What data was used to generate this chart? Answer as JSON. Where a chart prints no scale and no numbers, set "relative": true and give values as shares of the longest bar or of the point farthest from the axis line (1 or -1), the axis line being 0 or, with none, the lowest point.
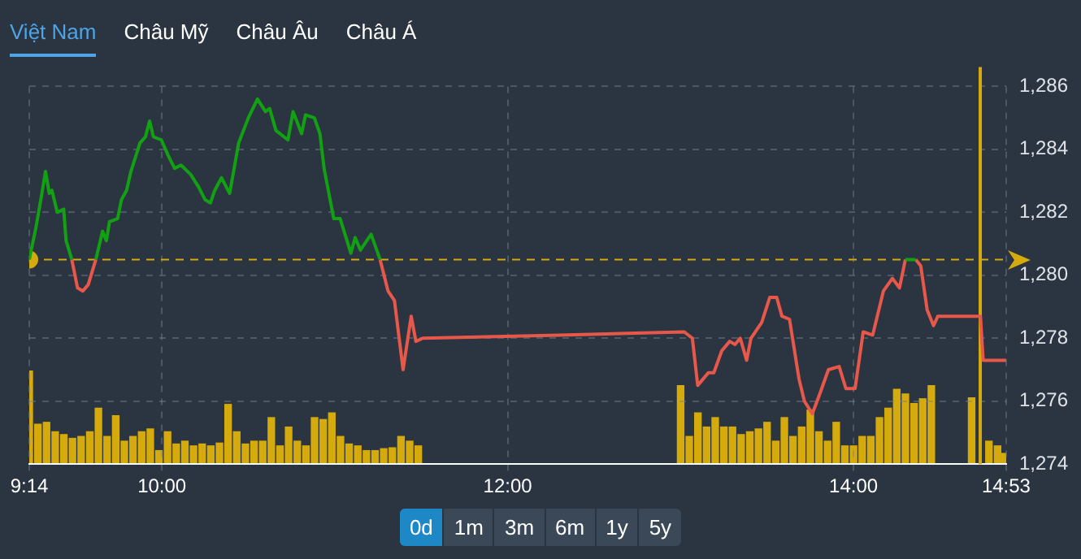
{
  "chart_data": [
    {
      "type": "line",
      "annotations": [
        "Việt Nam",
        "Châu Mỹ",
        "Châu Âu",
        "Châu Á"
      ],
      "xlim": [
        9.233,
        14.883
      ],
      "xticks": [
        {
          "value": 9.233,
          "label": "9:14"
        },
        {
          "value": 10,
          "label": "10:00"
        },
        {
          "value": 12,
          "label": "12:00"
        },
        {
          "value": 14,
          "label": "14:00"
        },
        {
          "value": 14.883,
          "label": "14:53"
        }
      ],
      "ylim": [
        1274,
        1286
      ],
      "yticks": [
        {
          "value": 1274,
          "label": "1,274"
        },
        {
          "value": 1276,
          "label": "1,276"
        },
        {
          "value": 1278,
          "label": "1,278"
        },
        {
          "value": 1280,
          "label": "1,280"
        },
        {
          "value": 1282,
          "label": "1,282"
        },
        {
          "value": 1284,
          "label": "1,284"
        },
        {
          "value": 1286,
          "label": "1,286"
        }
      ],
      "grid": true,
      "legend": false,
      "ref_lines": [
        {
          "axis": "y",
          "value": 1280.5,
          "color": "#d4aa0c",
          "line_style": "dashed"
        },
        {
          "axis": "x",
          "value": 14.733,
          "color": "#d4aa0c",
          "line_style": "solid"
        }
      ],
      "series": [
        {
          "color": "#12a112",
          "x": [
            9.233,
            9.271,
            9.303,
            9.327,
            9.349,
            9.364,
            9.395,
            9.432,
            9.446,
            9.479,
            9.55,
            9.618,
            9.657,
            9.679,
            9.697,
            9.744,
            9.766,
            9.796,
            9.821,
            9.873,
            9.905,
            9.929,
            9.951,
            9.997,
            10.037,
            10.074,
            10.111,
            10.167,
            10.213,
            10.25,
            10.281,
            10.306,
            10.345,
            10.392,
            10.444,
            10.5,
            10.553,
            10.599,
            10.623,
            10.66,
            10.729,
            10.759,
            10.808,
            10.831,
            10.882,
            10.914,
            10.938,
            10.994,
            11.031,
            11.093,
            11.118,
            11.148,
            11.21,
            11.262,
            11.3,
            14.3,
            14.36
          ],
          "values": [
            1280.5,
            1281.5,
            1282.5,
            1283.3,
            1282.6,
            1282.7,
            1282.0,
            1282.1,
            1281.1,
            1280.5,
            null,
            1280.5,
            1281.4,
            1281.1,
            1281.7,
            1281.8,
            1282.4,
            1282.7,
            1283.3,
            1284.2,
            1284.4,
            1284.9,
            1284.4,
            1284.3,
            1283.8,
            1283.4,
            1283.5,
            1283.2,
            1282.8,
            1282.4,
            1282.3,
            1282.7,
            1283.1,
            1282.6,
            1284.2,
            1285.0,
            1285.6,
            1285.2,
            1285.3,
            1284.6,
            1284.3,
            1285.2,
            1284.5,
            1285.1,
            1285.0,
            1284.5,
            1283.4,
            1281.8,
            1281.8,
            1280.7,
            1281.2,
            1280.8,
            1281.3,
            1280.5,
            null,
            1280.5,
            1280.5
          ]
        },
        {
          "color": "#e8584a",
          "x": [
            9.479,
            9.512,
            9.543,
            9.574,
            9.618,
            9.7,
            11.262,
            11.308,
            11.345,
            11.395,
            11.442,
            11.469,
            11.509,
            12.3,
            13.021,
            13.068,
            13.099,
            13.16,
            13.192,
            13.238,
            13.284,
            13.315,
            13.345,
            13.382,
            13.407,
            13.469,
            13.516,
            13.556,
            13.586,
            13.63,
            13.685,
            13.716,
            13.762,
            13.803,
            13.855,
            13.917,
            13.956,
            14.009,
            14.056,
            14.111,
            14.173,
            14.225,
            14.266,
            14.3,
            14.33,
            14.36,
            14.389,
            14.426,
            14.463,
            14.488,
            14.734,
            14.75,
            14.883
          ],
          "values": [
            1280.5,
            1279.6,
            1279.5,
            1279.7,
            1280.5,
            null,
            1280.5,
            1279.5,
            1279.2,
            1277.0,
            1278.7,
            1277.9,
            1278.0,
            1278.1,
            1278.2,
            1278.0,
            1276.5,
            1276.9,
            1276.9,
            1277.6,
            1277.9,
            1277.8,
            1278.0,
            1277.3,
            1278.0,
            1278.5,
            1279.3,
            1279.3,
            1278.7,
            1278.6,
            1276.7,
            1276.0,
            1275.6,
            1276.2,
            1277.0,
            1277.1,
            1276.4,
            1276.4,
            1278.2,
            1278.1,
            1279.5,
            1279.9,
            1279.6,
            1280.5,
            null,
            1280.5,
            1280.3,
            1278.9,
            1278.4,
            1278.7,
            1278.7,
            1277.3,
            1277.3
          ]
        },
        {
          "type": "scatter",
          "color": "#d4aa0c",
          "x": [
            9.233
          ],
          "values": [
            1280.5
          ]
        }
      ]
    },
    {
      "type": "bar",
      "relative": true,
      "color": "#d4aa0c",
      "annotations": [
        "0d",
        "1m",
        "3m",
        "6m",
        "1y",
        "5y"
      ],
      "xlim": [
        9.233,
        14.883
      ],
      "x": [
        9.233,
        9.283,
        9.333,
        9.383,
        9.433,
        9.483,
        9.533,
        9.583,
        9.633,
        9.683,
        9.733,
        9.783,
        9.833,
        9.883,
        9.933,
        9.983,
        10.033,
        10.083,
        10.133,
        10.183,
        10.233,
        10.283,
        10.333,
        10.383,
        10.433,
        10.483,
        10.533,
        10.583,
        10.633,
        10.683,
        10.733,
        10.783,
        10.833,
        10.883,
        10.933,
        10.983,
        11.033,
        11.083,
        11.133,
        11.183,
        11.233,
        11.283,
        11.333,
        11.383,
        11.433,
        11.483,
        13.0,
        13.05,
        13.1,
        13.15,
        13.2,
        13.25,
        13.3,
        13.35,
        13.4,
        13.45,
        13.5,
        13.55,
        13.6,
        13.65,
        13.7,
        13.75,
        13.8,
        13.85,
        13.9,
        13.95,
        14.0,
        14.05,
        14.1,
        14.15,
        14.2,
        14.25,
        14.3,
        14.35,
        14.4,
        14.45,
        14.683,
        14.783,
        14.833,
        14.867
      ],
      "values": [
        1.0,
        0.43,
        0.45,
        0.35,
        0.32,
        0.28,
        0.3,
        0.35,
        0.6,
        0.3,
        0.52,
        0.25,
        0.3,
        0.35,
        0.38,
        0.15,
        0.35,
        0.22,
        0.25,
        0.2,
        0.22,
        0.2,
        0.23,
        0.64,
        0.35,
        0.22,
        0.25,
        0.25,
        0.5,
        0.2,
        0.4,
        0.25,
        0.2,
        0.5,
        0.48,
        0.55,
        0.3,
        0.22,
        0.2,
        0.15,
        0.15,
        0.17,
        0.18,
        0.3,
        0.25,
        0.2,
        0.84,
        0.3,
        0.55,
        0.4,
        0.5,
        0.4,
        0.4,
        0.32,
        0.35,
        0.38,
        0.45,
        0.25,
        0.5,
        0.3,
        0.4,
        0.58,
        0.35,
        0.25,
        0.45,
        0.2,
        0.2,
        0.3,
        0.3,
        0.5,
        0.6,
        0.8,
        0.75,
        0.65,
        0.7,
        0.84,
        0.71,
        0.25,
        0.2,
        0.12
      ]
    }
  ]
}
